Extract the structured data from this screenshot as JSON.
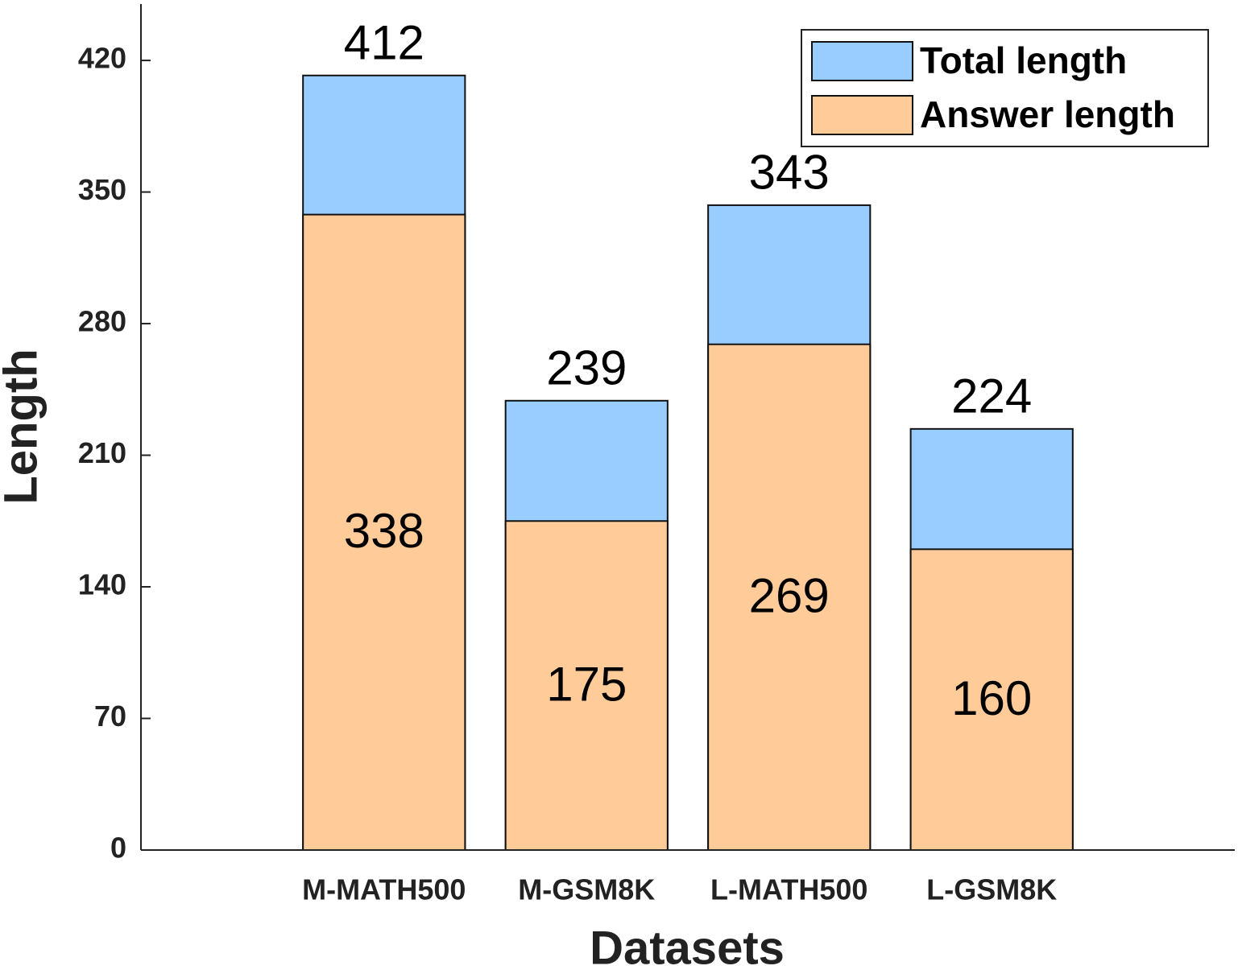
{
  "chart_data": {
    "type": "bar",
    "x_label": "Datasets",
    "y_label": "Length",
    "categories": [
      "M-MATH500",
      "M-GSM8K",
      "L-MATH500",
      "L-GSM8K"
    ],
    "series": [
      {
        "name": "Total length",
        "color": "#99ccff",
        "values": [
          412,
          239,
          343,
          224
        ]
      },
      {
        "name": "Answer length",
        "color": "#ffcc99",
        "values": [
          338,
          175,
          269,
          160
        ]
      }
    ],
    "ylim": [
      0,
      450
    ],
    "yticks": [
      0,
      70,
      140,
      210,
      280,
      350,
      420
    ],
    "grid": false,
    "legend": "upper right"
  }
}
